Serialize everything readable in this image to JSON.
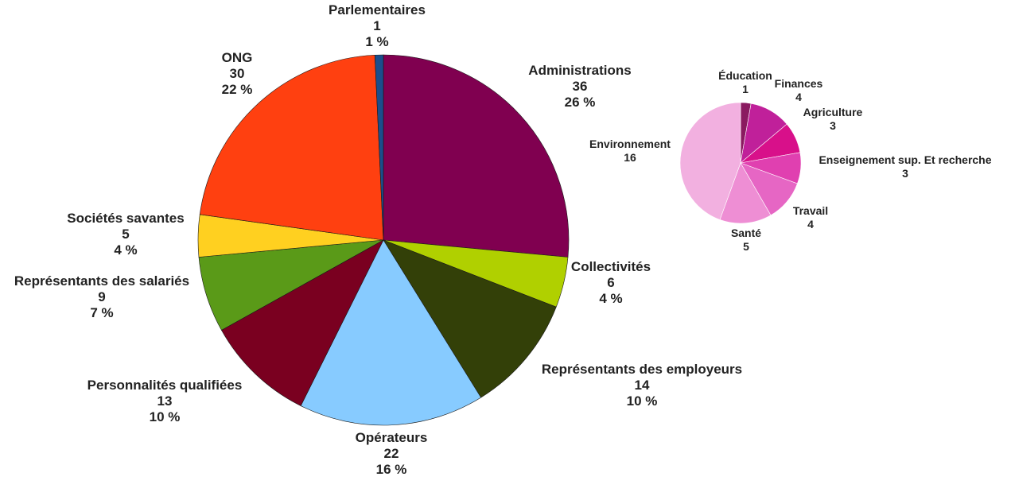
{
  "chart_data": [
    {
      "type": "pie",
      "slices": [
        {
          "label": "Administrations",
          "value": 36,
          "percent": "26 %",
          "color": "#800050"
        },
        {
          "label": "Collectivités",
          "value": 6,
          "percent": "4 %",
          "color": "#b0d000"
        },
        {
          "label": "Représentants des employeurs",
          "value": 14,
          "percent": "10 %",
          "color": "#334008"
        },
        {
          "label": "Opérateurs",
          "value": 22,
          "percent": "16 %",
          "color": "#87cbff"
        },
        {
          "label": "Personnalités qualifiées",
          "value": 13,
          "percent": "10 %",
          "color": "#7a0020"
        },
        {
          "label": "Représentants des salariés",
          "value": 9,
          "percent": "7 %",
          "color": "#5a9a18"
        },
        {
          "label": "Sociétés savantes",
          "value": 5,
          "percent": "4 %",
          "color": "#ffd020"
        },
        {
          "label": "ONG",
          "value": 30,
          "percent": "22 %",
          "color": "#ff4010"
        },
        {
          "label": "Parlementaires",
          "value": 1,
          "percent": "1 %",
          "color": "#1a4e8c"
        }
      ]
    },
    {
      "type": "pie",
      "slices": [
        {
          "label": "Éducation",
          "value": 1,
          "color": "#8a1a60"
        },
        {
          "label": "Finances",
          "value": 4,
          "color": "#c0209a"
        },
        {
          "label": "Agriculture",
          "value": 3,
          "color": "#d8108a"
        },
        {
          "label": "Enseignement sup. Et recherche",
          "value": 3,
          "color": "#e040b0"
        },
        {
          "label": "Travail",
          "value": 4,
          "color": "#e666c4"
        },
        {
          "label": "Santé",
          "value": 5,
          "color": "#ee8ed4"
        },
        {
          "label": "Environnement",
          "value": 16,
          "color": "#f2b0e0"
        }
      ]
    }
  ]
}
